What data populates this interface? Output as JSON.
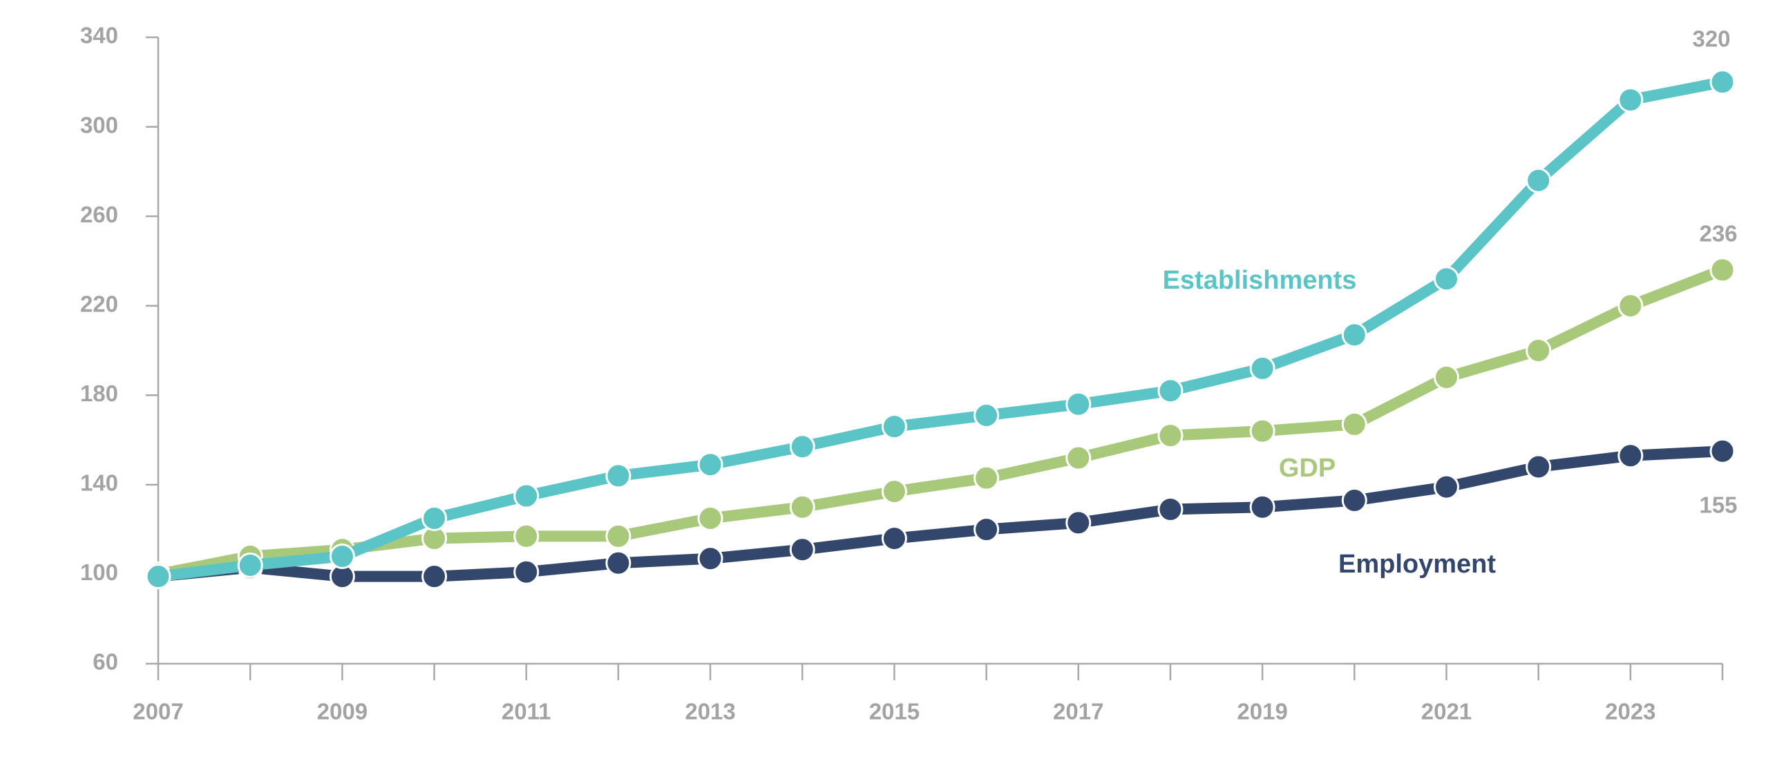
{
  "chart_data": {
    "type": "line",
    "categories": [
      "2007",
      null,
      "2009",
      null,
      "2011",
      null,
      "2013",
      null,
      "2015",
      null,
      "2017",
      null,
      "2019",
      null,
      "2021",
      null,
      "2023",
      null
    ],
    "series": [
      {
        "name": "Establishments",
        "color": "#5bc4c6",
        "values": [
          99,
          104,
          108,
          125,
          135,
          144,
          149,
          157,
          166,
          171,
          176,
          182,
          192,
          207,
          232,
          276,
          312,
          320
        ]
      },
      {
        "name": "GDP",
        "color": "#a8c97a",
        "values": [
          100,
          108,
          111,
          116,
          117,
          117,
          125,
          130,
          137,
          143,
          152,
          162,
          164,
          167,
          188,
          200,
          220,
          236
        ]
      },
      {
        "name": "Employment",
        "color": "#33466b",
        "values": [
          99,
          103,
          99,
          99,
          101,
          105,
          107,
          111,
          116,
          120,
          123,
          129,
          130,
          133,
          139,
          148,
          153,
          155
        ]
      }
    ],
    "ylim": [
      60,
      340
    ],
    "yticks": [
      60,
      100,
      140,
      180,
      220,
      260,
      300,
      340
    ]
  }
}
